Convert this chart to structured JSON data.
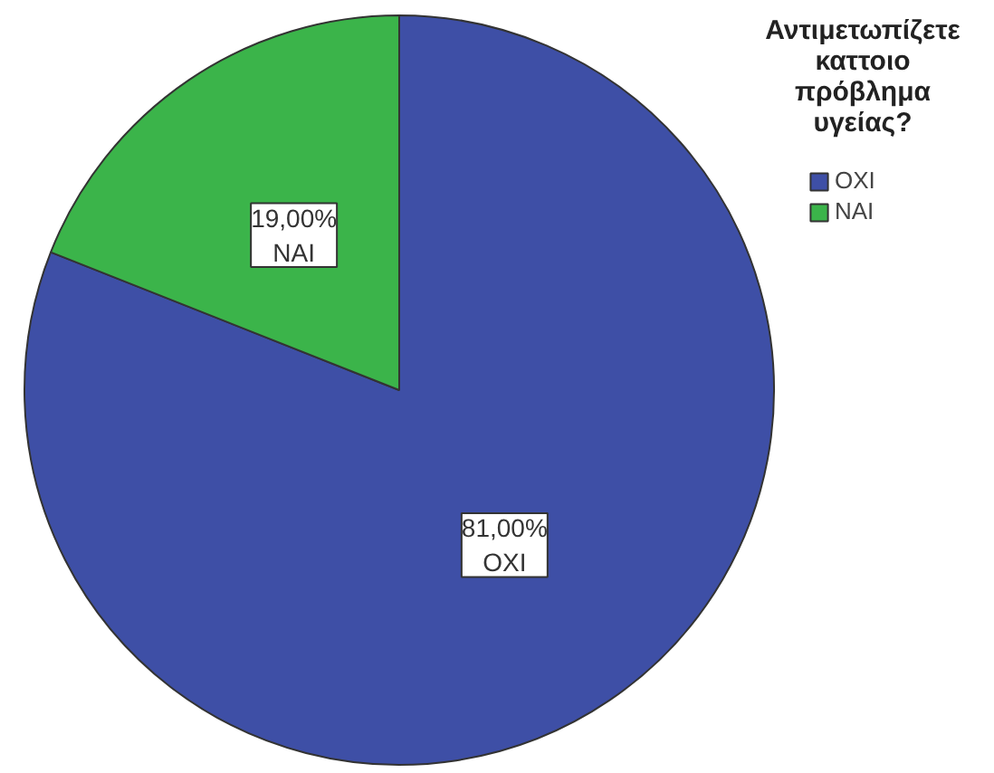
{
  "chart_data": {
    "type": "pie",
    "legend_title": "Αντιμετωπίζετε καττοιο πρόβλημα υγείας?",
    "categories": [
      "ΟΧΙ",
      "ΝΑΙ"
    ],
    "values": [
      81,
      19
    ],
    "value_labels": [
      "81,00%",
      "19,00%"
    ],
    "colors": [
      "#3e4fa6",
      "#3bb44a"
    ],
    "legend": "top right"
  }
}
